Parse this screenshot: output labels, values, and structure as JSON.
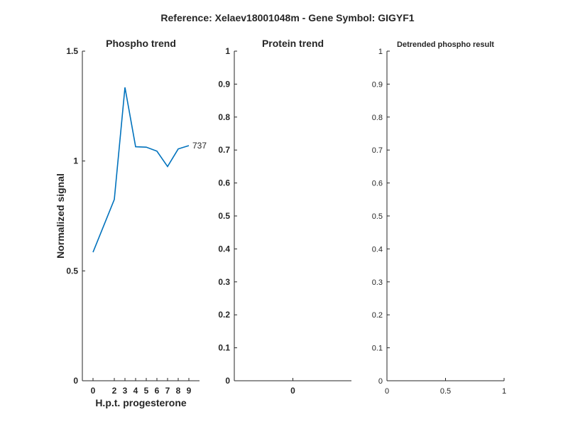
{
  "figure": {
    "suptitle": "Reference:  Xelaev18001048m - Gene Symbol:  GIGYF1"
  },
  "chart_data": [
    {
      "type": "line",
      "title": "Phospho trend",
      "xlabel": "H.p.t. progesterone",
      "ylabel": "Normalized signal",
      "xlim": [
        -1,
        10
      ],
      "ylim": [
        0,
        1.5
      ],
      "x_ticks": [
        0,
        2,
        3,
        4,
        5,
        6,
        7,
        8,
        9
      ],
      "x_tick_labels": [
        "0",
        "2",
        "3",
        "4",
        "5",
        "6",
        "7",
        "8",
        "9"
      ],
      "y_ticks": [
        0,
        0.5,
        1,
        1.5
      ],
      "y_tick_labels": [
        "0",
        "0.5",
        "1",
        "1.5"
      ],
      "series": [
        {
          "name": "737",
          "color": "#0072BD",
          "x": [
            0,
            2,
            3,
            4,
            5,
            6,
            7,
            8,
            9
          ],
          "y": [
            0.585,
            0.825,
            1.335,
            1.065,
            1.063,
            1.045,
            0.975,
            1.055,
            1.07
          ]
        }
      ],
      "grid": false
    },
    {
      "type": "line",
      "title": "Protein trend",
      "xlabel": "",
      "ylabel": "",
      "xlim": [
        -1,
        1
      ],
      "ylim": [
        0,
        1
      ],
      "x_ticks": [
        0
      ],
      "x_tick_labels": [
        "0"
      ],
      "y_ticks": [
        0,
        0.1,
        0.2,
        0.3,
        0.4,
        0.5,
        0.6,
        0.7,
        0.8,
        0.9,
        1
      ],
      "y_tick_labels": [
        "0",
        "0.1",
        "0.2",
        "0.3",
        "0.4",
        "0.5",
        "0.6",
        "0.7",
        "0.8",
        "0.9",
        "1"
      ],
      "series": [],
      "grid": false
    },
    {
      "type": "line",
      "title": "Detrended phospho result",
      "xlabel": "",
      "ylabel": "",
      "xlim": [
        0,
        1
      ],
      "ylim": [
        0,
        1
      ],
      "x_ticks": [
        0,
        0.5,
        1
      ],
      "x_tick_labels": [
        "0",
        "0.5",
        "1"
      ],
      "y_ticks": [
        0,
        0.1,
        0.2,
        0.3,
        0.4,
        0.5,
        0.6,
        0.7,
        0.8,
        0.9,
        1
      ],
      "y_tick_labels": [
        "0",
        "0.1",
        "0.2",
        "0.3",
        "0.4",
        "0.5",
        "0.6",
        "0.7",
        "0.8",
        "0.9",
        "1"
      ],
      "series": [],
      "grid": false
    }
  ]
}
